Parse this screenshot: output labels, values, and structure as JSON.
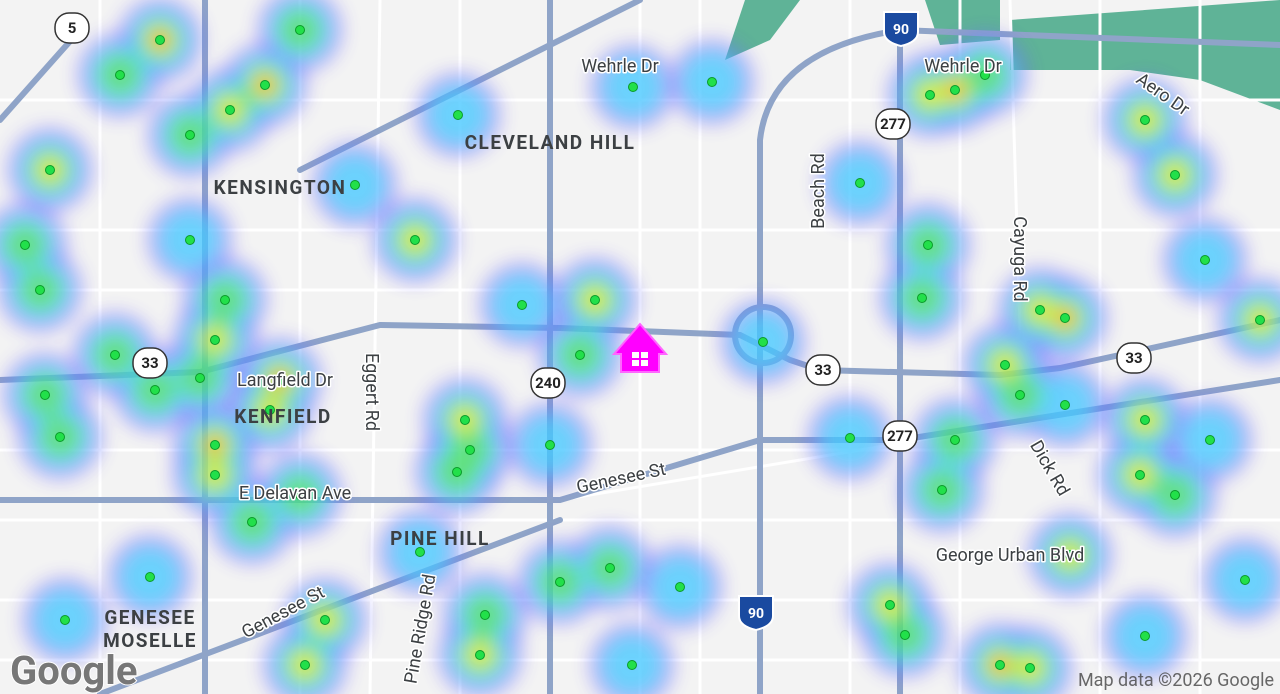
{
  "map": {
    "labels": [
      "Wehrle Dr",
      "CLEVELAND HILL",
      "KENSINGTON",
      "Beach Rd",
      "Wehrle Dr",
      "Aero Dr",
      "Cayuga Rd",
      "Langfield Dr",
      "KENFIELD",
      "Eggert Rd",
      "Genesee St",
      "E Delavan Ave",
      "PINE HILL",
      "Dick Rd",
      "George Urban Blvd",
      "GENESEE",
      "MOSELLE",
      "Genesee St",
      "Pine Ridge Rd"
    ],
    "shields": [
      "5",
      "90",
      "277",
      "33",
      "240",
      "33",
      "277",
      "33",
      "90"
    ],
    "attribution": "Map data ©2026 Google",
    "logo": "Google"
  }
}
